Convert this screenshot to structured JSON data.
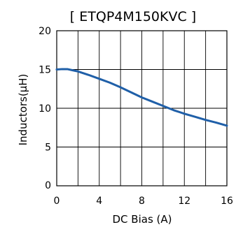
{
  "chart_data": {
    "type": "line",
    "title": "[ ETQP4M150KVC ]",
    "xlabel": "DC Bias (A)",
    "ylabel": "Inductors(μH)",
    "xlim": [
      0,
      16
    ],
    "ylim": [
      0,
      20
    ],
    "xticks": [
      0,
      2,
      4,
      6,
      8,
      10,
      12,
      14,
      16
    ],
    "xtick_labels": [
      "0",
      "",
      "4",
      "",
      "8",
      "",
      "12",
      "",
      "16"
    ],
    "yticks": [
      0,
      5,
      10,
      15,
      20
    ],
    "ytick_labels": [
      "0",
      "5",
      "10",
      "15",
      "20"
    ],
    "grid": true,
    "series": [
      {
        "color": "#1f5fa8",
        "x": [
          0,
          0.5,
          1.0,
          1.5,
          2,
          3,
          4,
          5,
          6,
          7,
          8,
          9,
          10,
          11,
          12,
          13,
          14,
          15,
          16
        ],
        "y": [
          15.0,
          15.05,
          15.05,
          14.9,
          14.75,
          14.3,
          13.8,
          13.3,
          12.7,
          12.05,
          11.4,
          10.85,
          10.3,
          9.75,
          9.3,
          8.9,
          8.5,
          8.15,
          7.75
        ]
      }
    ]
  }
}
